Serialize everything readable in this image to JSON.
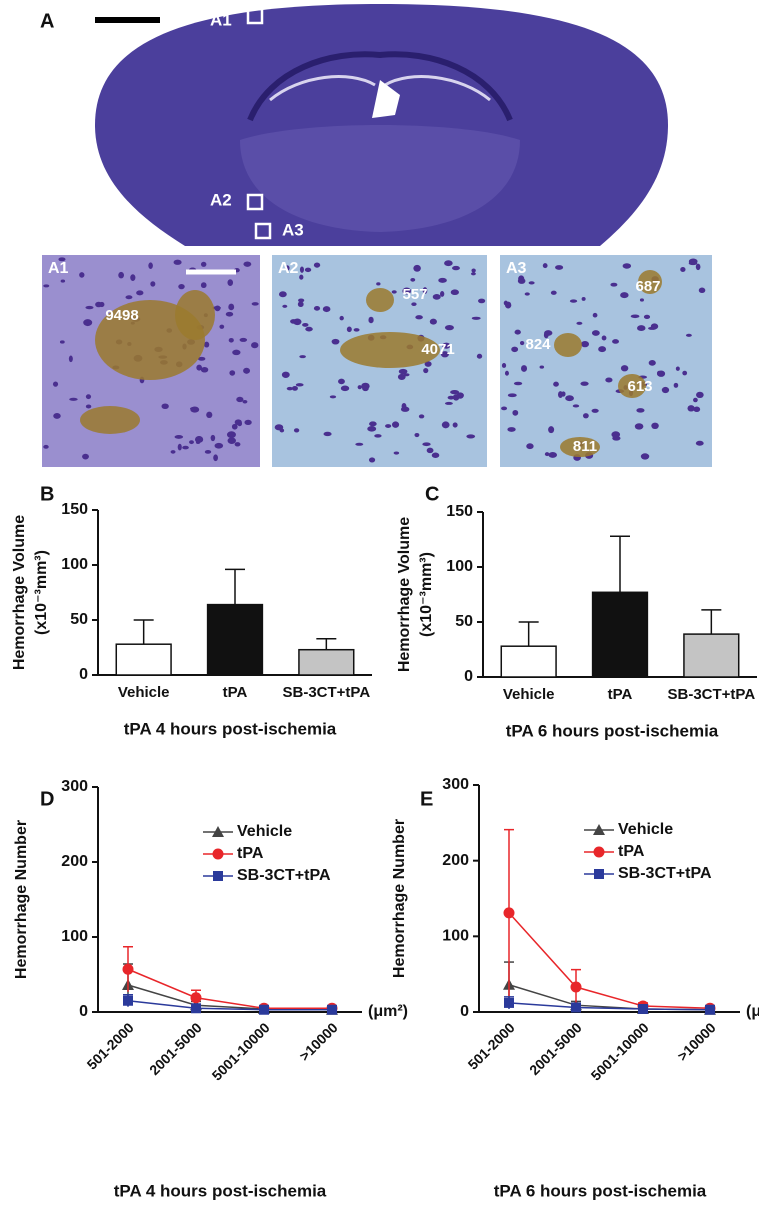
{
  "image_panel": {
    "label": "A",
    "regions": [
      "A1",
      "A2",
      "A3"
    ],
    "insets": [
      {
        "label": "A1",
        "counts": [
          9498
        ]
      },
      {
        "label": "A2",
        "counts": [
          557,
          4071
        ]
      },
      {
        "label": "A3",
        "counts": [
          687,
          824,
          613,
          811
        ]
      }
    ]
  },
  "chart_data": [
    {
      "type": "bar",
      "panel": "B",
      "ylabel": [
        "Hemorrhage Volume",
        "(x10⁻³mm³)"
      ],
      "xlabel": "tPA 4 hours post-ischemia",
      "categories": [
        "Vehicle",
        "tPA",
        "SB-3CT+tPA"
      ],
      "values": [
        28,
        64,
        23
      ],
      "errors": [
        22,
        32,
        10
      ],
      "colors": [
        "#ffffff",
        "#111111",
        "#c4c4c4"
      ],
      "ylim": [
        0,
        150
      ],
      "yticks": [
        0,
        50,
        100,
        150
      ]
    },
    {
      "type": "bar",
      "panel": "C",
      "ylabel": [
        "Hemorrhage Volume",
        "(x10⁻³mm³)"
      ],
      "xlabel": "tPA 6 hours post-ischemia",
      "categories": [
        "Vehicle",
        "tPA",
        "SB-3CT+tPA"
      ],
      "values": [
        28,
        77,
        39
      ],
      "errors": [
        22,
        51,
        22
      ],
      "colors": [
        "#ffffff",
        "#111111",
        "#c4c4c4"
      ],
      "ylim": [
        0,
        150
      ],
      "yticks": [
        0,
        50,
        100,
        150
      ]
    },
    {
      "type": "line",
      "panel": "D",
      "ylabel": "Hemorrhage Number",
      "xlabel": "tPA 4 hours post-ischemia",
      "xunit": "(μm²)",
      "categories": [
        "501-2000",
        "2001-5000",
        "5001-10000",
        ">10000"
      ],
      "ylim": [
        0,
        300
      ],
      "yticks": [
        0,
        100,
        200,
        300
      ],
      "series": [
        {
          "name": "Vehicle",
          "color": "#444444",
          "marker": "triangle",
          "values": [
            36,
            9,
            4,
            3
          ],
          "errors": [
            28,
            5,
            2,
            1
          ]
        },
        {
          "name": "tPA",
          "color": "#e8262a",
          "marker": "circle",
          "values": [
            57,
            19,
            5,
            5
          ],
          "errors": [
            30,
            10,
            2,
            2
          ]
        },
        {
          "name": "SB-3CT+tPA",
          "color": "#2b3a9b",
          "marker": "square",
          "values": [
            15,
            5,
            3,
            3
          ],
          "errors": [
            8,
            2,
            1,
            1
          ]
        }
      ]
    },
    {
      "type": "line",
      "panel": "E",
      "ylabel": "Hemorrhage Number",
      "xlabel": "tPA 6 hours post-ischemia",
      "xunit": "(μm²)",
      "categories": [
        "501-2000",
        "2001-5000",
        "5001-10000",
        ">10000"
      ],
      "ylim": [
        0,
        300
      ],
      "yticks": [
        0,
        100,
        200,
        300
      ],
      "series": [
        {
          "name": "Vehicle",
          "color": "#444444",
          "marker": "triangle",
          "values": [
            36,
            9,
            4,
            3
          ],
          "errors": [
            30,
            5,
            2,
            1
          ]
        },
        {
          "name": "tPA",
          "color": "#e8262a",
          "marker": "circle",
          "values": [
            131,
            33,
            8,
            5
          ],
          "errors": [
            110,
            23,
            4,
            2
          ]
        },
        {
          "name": "SB-3CT+tPA",
          "color": "#2b3a9b",
          "marker": "square",
          "values": [
            12,
            6,
            4,
            3
          ],
          "errors": [
            8,
            3,
            2,
            1
          ]
        }
      ]
    }
  ]
}
